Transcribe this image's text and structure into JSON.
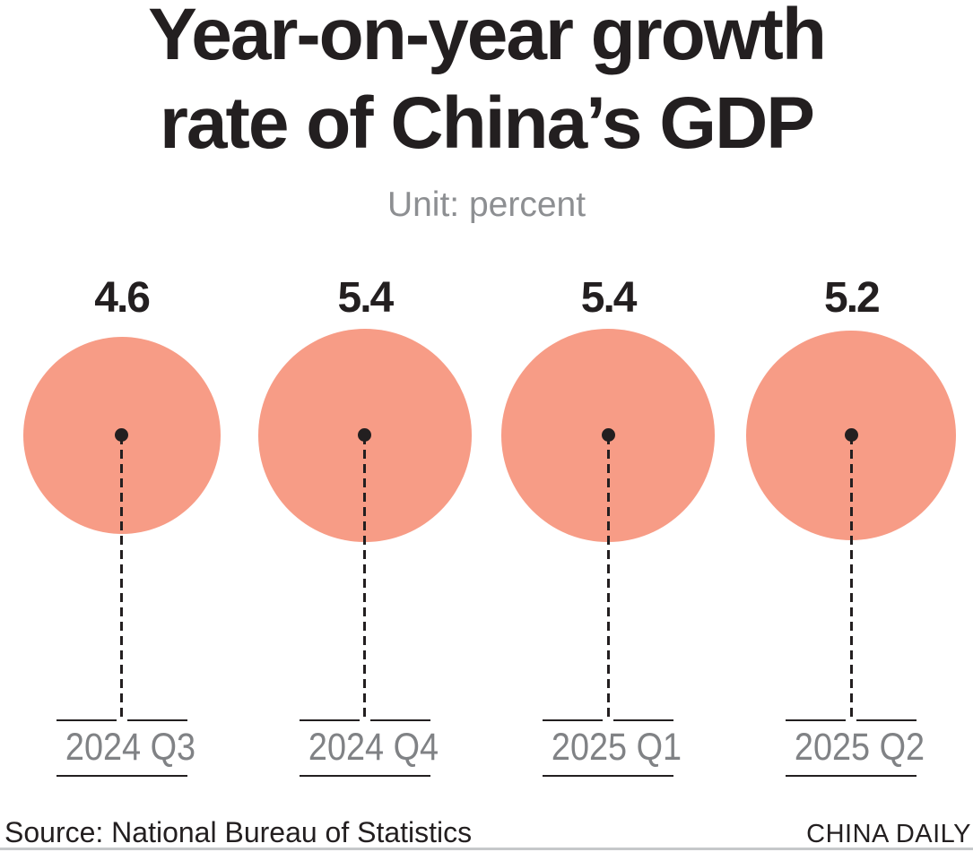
{
  "header": {
    "title_line1": "Year-on-year growth",
    "title_line2": "rate of China’s GDP",
    "unit_label": "Unit: percent"
  },
  "chart_data": {
    "type": "bubble",
    "title": "Year-on-year growth rate of China's GDP",
    "unit": "percent",
    "categories": [
      "2024 Q3",
      "2024 Q4",
      "2025 Q1",
      "2025 Q2"
    ],
    "values": [
      4.6,
      5.4,
      5.4,
      5.2
    ],
    "encoding": "circle area proportional to value; dashed leader from circle center to category label",
    "legend": "none",
    "grid": "off",
    "colors": {
      "bubble": "#F79C86",
      "ink": "#231F20",
      "category_label": "#808285",
      "unit_label": "#8D8F92",
      "bottom_divider": "#C6C8CA"
    }
  },
  "footer": {
    "source": "Source: National Bureau of Statistics",
    "brand": "CHINA DAILY"
  }
}
